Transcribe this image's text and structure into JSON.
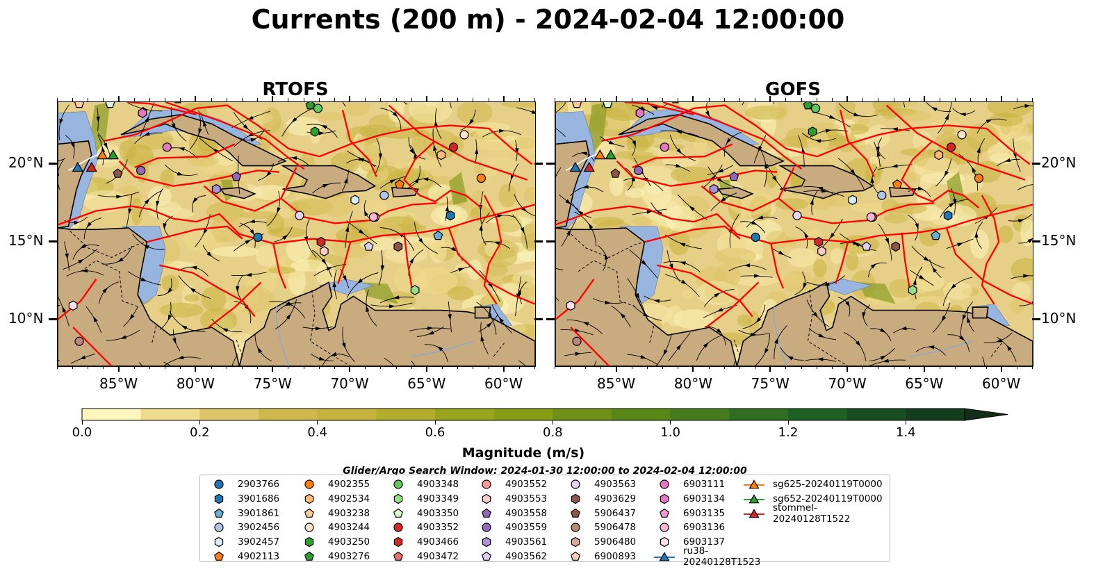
{
  "title": "Currents (200 m) - 2024-02-04 12:00:00",
  "panels": [
    {
      "title": "RTOFS",
      "model": "rtofs"
    },
    {
      "title": "GOFS",
      "model": "gofs"
    }
  ],
  "lat_labels": [
    "20°N",
    "15°N",
    "10°N"
  ],
  "lon_labels": [
    "85°W",
    "80°W",
    "75°W",
    "70°W",
    "65°W",
    "60°W"
  ],
  "colorbar": {
    "label": "Magnitude (m/s)",
    "ticks": [
      "0.0",
      "0.2",
      "0.4",
      "0.6",
      "0.8",
      "1.0",
      "1.2",
      "1.4"
    ],
    "min": 0.0,
    "max": 1.5,
    "extend": "max",
    "colors": [
      "#fdf6bd",
      "#efdb8c",
      "#dfc569",
      "#d0b84f",
      "#c6b33e",
      "#b3ad2d",
      "#9aa51e",
      "#859c14",
      "#6e9016",
      "#588718",
      "#437b1d",
      "#2f6d22",
      "#1f5f24",
      "#184d22",
      "#143d1e",
      "#122d18"
    ]
  },
  "search_window": "Glider/Argo Search Window: 2024-01-30 12:00:00 to 2024-02-04 12:00:00",
  "legend": [
    {
      "label": "2903766",
      "marker": "circle",
      "color": "#1f77b4"
    },
    {
      "label": "3901686",
      "marker": "hexagon",
      "color": "#1f77b4"
    },
    {
      "label": "3901861",
      "marker": "pentagon",
      "color": "#6aaed6"
    },
    {
      "label": "3902456",
      "marker": "circle",
      "color": "#aec7e8"
    },
    {
      "label": "3902457",
      "marker": "hexagon",
      "color": "#dceefa"
    },
    {
      "label": "4902113",
      "marker": "pentagon",
      "color": "#ff7f0e"
    },
    {
      "label": "4902355",
      "marker": "circle",
      "color": "#ff7f0e"
    },
    {
      "label": "4902534",
      "marker": "hexagon",
      "color": "#ffbb78"
    },
    {
      "label": "4903238",
      "marker": "pentagon",
      "color": "#ffcc99"
    },
    {
      "label": "4903244",
      "marker": "circle",
      "color": "#fde3c7"
    },
    {
      "label": "4903250",
      "marker": "hexagon",
      "color": "#2ca02c"
    },
    {
      "label": "4903276",
      "marker": "pentagon",
      "color": "#2ca02c"
    },
    {
      "label": "4903348",
      "marker": "circle",
      "color": "#5fc95f"
    },
    {
      "label": "4903349",
      "marker": "hexagon",
      "color": "#98df8a"
    },
    {
      "label": "4903350",
      "marker": "pentagon",
      "color": "#dff5d8"
    },
    {
      "label": "4903352",
      "marker": "circle",
      "color": "#d62728"
    },
    {
      "label": "4903466",
      "marker": "hexagon",
      "color": "#d62728"
    },
    {
      "label": "4903472",
      "marker": "pentagon",
      "color": "#e8716f"
    },
    {
      "label": "4903552",
      "marker": "circle",
      "color": "#ff9896"
    },
    {
      "label": "4903553",
      "marker": "hexagon",
      "color": "#ffc9c4"
    },
    {
      "label": "4903558",
      "marker": "pentagon",
      "color": "#9467bd"
    },
    {
      "label": "4903559",
      "marker": "circle",
      "color": "#9467bd"
    },
    {
      "label": "4903561",
      "marker": "hexagon",
      "color": "#b08fd9"
    },
    {
      "label": "4903562",
      "marker": "pentagon",
      "color": "#dccdf2"
    },
    {
      "label": "4903563",
      "marker": "circle",
      "color": "#e3d3f3"
    },
    {
      "label": "4903629",
      "marker": "hexagon",
      "color": "#8c564b"
    },
    {
      "label": "5906437",
      "marker": "pentagon",
      "color": "#8c564b"
    },
    {
      "label": "5906478",
      "marker": "circle",
      "color": "#b8867c"
    },
    {
      "label": "5906480",
      "marker": "hexagon",
      "color": "#d8a899"
    },
    {
      "label": "6900893",
      "marker": "pentagon",
      "color": "#f4cdb8"
    },
    {
      "label": "6903111",
      "marker": "circle",
      "color": "#e377c2"
    },
    {
      "label": "6903134",
      "marker": "hexagon",
      "color": "#e377c2"
    },
    {
      "label": "6903135",
      "marker": "pentagon",
      "color": "#f09ad5"
    },
    {
      "label": "6903136",
      "marker": "circle",
      "color": "#f7b6d2"
    },
    {
      "label": "6903137",
      "marker": "hexagon",
      "color": "#fbe1ee"
    },
    {
      "label": "ru38-20240128T1523",
      "marker": "triangle-line",
      "color": "#1f77b4"
    },
    {
      "label": "sg625-20240119T0000",
      "marker": "triangle-line",
      "color": "#ff7f0e"
    },
    {
      "label": "sg652-20240119T0000",
      "marker": "triangle-line",
      "color": "#2ca02c"
    },
    {
      "label": "stommel-20240128T1522",
      "marker": "triangle-line",
      "color": "#d62728"
    }
  ],
  "map": {
    "extent_lon": [
      -89,
      -58
    ],
    "extent_lat": [
      7,
      24
    ],
    "ocean_color": "#e6cf86",
    "land_color": "#c9ab80",
    "shelf_color": "#98b5df",
    "eez_color": "#ff0000",
    "floats": [
      {
        "id": "2903766",
        "lon": -76.0,
        "lat": 15.3
      },
      {
        "id": "3901686",
        "lon": -63.5,
        "lat": 16.7
      },
      {
        "id": "3901861",
        "lon": -64.3,
        "lat": 15.4
      },
      {
        "id": "3902456",
        "lon": -67.8,
        "lat": 18.0
      },
      {
        "id": "3902457",
        "lon": -69.7,
        "lat": 17.7
      },
      {
        "id": "4902113",
        "lon": -66.8,
        "lat": 18.7
      },
      {
        "id": "4902355",
        "lon": -61.5,
        "lat": 19.1
      },
      {
        "id": "4902534",
        "lon": -64.1,
        "lat": 20.6
      },
      {
        "id": "4903238",
        "lon": -87.6,
        "lat": 23.9
      },
      {
        "id": "4903244",
        "lon": -62.6,
        "lat": 21.9
      },
      {
        "id": "4903250",
        "lon": -72.3,
        "lat": 22.1
      },
      {
        "id": "4903276",
        "lon": -72.6,
        "lat": 23.8
      },
      {
        "id": "4903348",
        "lon": -72.1,
        "lat": 23.6
      },
      {
        "id": "4903349",
        "lon": -65.8,
        "lat": 11.9
      },
      {
        "id": "4903350",
        "lon": -85.6,
        "lat": 23.9
      },
      {
        "id": "4903352",
        "lon": -63.3,
        "lat": 21.1
      },
      {
        "id": "4903466",
        "lon": -71.9,
        "lat": 15.0
      },
      {
        "id": "4903472",
        "lon": -81.2,
        "lat": 24.2
      },
      {
        "id": "4903552",
        "lon": -68.4,
        "lat": 16.6
      },
      {
        "id": "4903553",
        "lon": -71.7,
        "lat": 14.4
      },
      {
        "id": "4903558",
        "lon": -77.4,
        "lat": 19.2
      },
      {
        "id": "4903559",
        "lon": -83.6,
        "lat": 19.6
      },
      {
        "id": "4903561",
        "lon": -78.7,
        "lat": 18.4
      },
      {
        "id": "4903562",
        "lon": -68.8,
        "lat": 14.7
      },
      {
        "id": "4903563",
        "lon": -73.3,
        "lat": 16.7
      },
      {
        "id": "4903629",
        "lon": -66.9,
        "lat": 14.7
      },
      {
        "id": "5906478",
        "lon": -87.6,
        "lat": 8.6
      },
      {
        "id": "6903134",
        "lon": -83.5,
        "lat": 23.3
      },
      {
        "id": "6903136",
        "lon": -68.5,
        "lat": 16.6
      },
      {
        "id": "6903137",
        "lon": -88.0,
        "lat": 10.9
      },
      {
        "id": "6903111",
        "lon": -81.9,
        "lat": 21.1
      },
      {
        "id": "5906437",
        "lon": -85.1,
        "lat": 19.4
      }
    ],
    "gliders": [
      {
        "id": "ru38-20240128T1523",
        "lon": -87.7,
        "lat": 19.8
      },
      {
        "id": "sg625-20240119T0000",
        "lon": -86.1,
        "lat": 20.6
      },
      {
        "id": "sg652-20240119T0000",
        "lon": -85.4,
        "lat": 20.6
      },
      {
        "id": "stommel-20240128T1522",
        "lon": -86.8,
        "lat": 19.8
      }
    ]
  }
}
